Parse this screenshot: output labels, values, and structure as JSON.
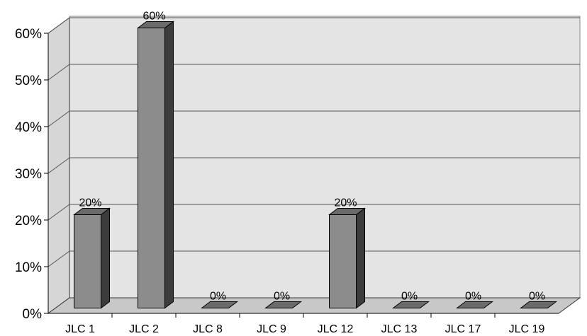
{
  "chart_data": {
    "type": "bar",
    "title": "",
    "xlabel": "",
    "ylabel": "",
    "categories": [
      "JLC 1",
      "JLC 2",
      "JLC 8",
      "JLC 9",
      "JLC 12",
      "JLC 13",
      "JLC 17",
      "JLC 19"
    ],
    "values": [
      20,
      60,
      0,
      0,
      20,
      0,
      0,
      0
    ],
    "data_labels": [
      "20%",
      "60%",
      "0%",
      "0%",
      "20%",
      "0%",
      "0%",
      "0%"
    ],
    "yticks": [
      0,
      10,
      20,
      30,
      40,
      50,
      60
    ],
    "ytick_labels": [
      "0%",
      "10%",
      "20%",
      "30%",
      "40%",
      "50%",
      "60%"
    ],
    "ylim": [
      0,
      60
    ],
    "grid": true,
    "style": "3d-column",
    "colors": {
      "bar_front": "#8c8c8c",
      "bar_side": "#3c3c3c",
      "bar_top": "#6a6a6a",
      "back_wall": "#e4e4e4",
      "side_wall": "#d6d6d6",
      "floor": "#c8c8c8",
      "grid": "#555555"
    }
  }
}
